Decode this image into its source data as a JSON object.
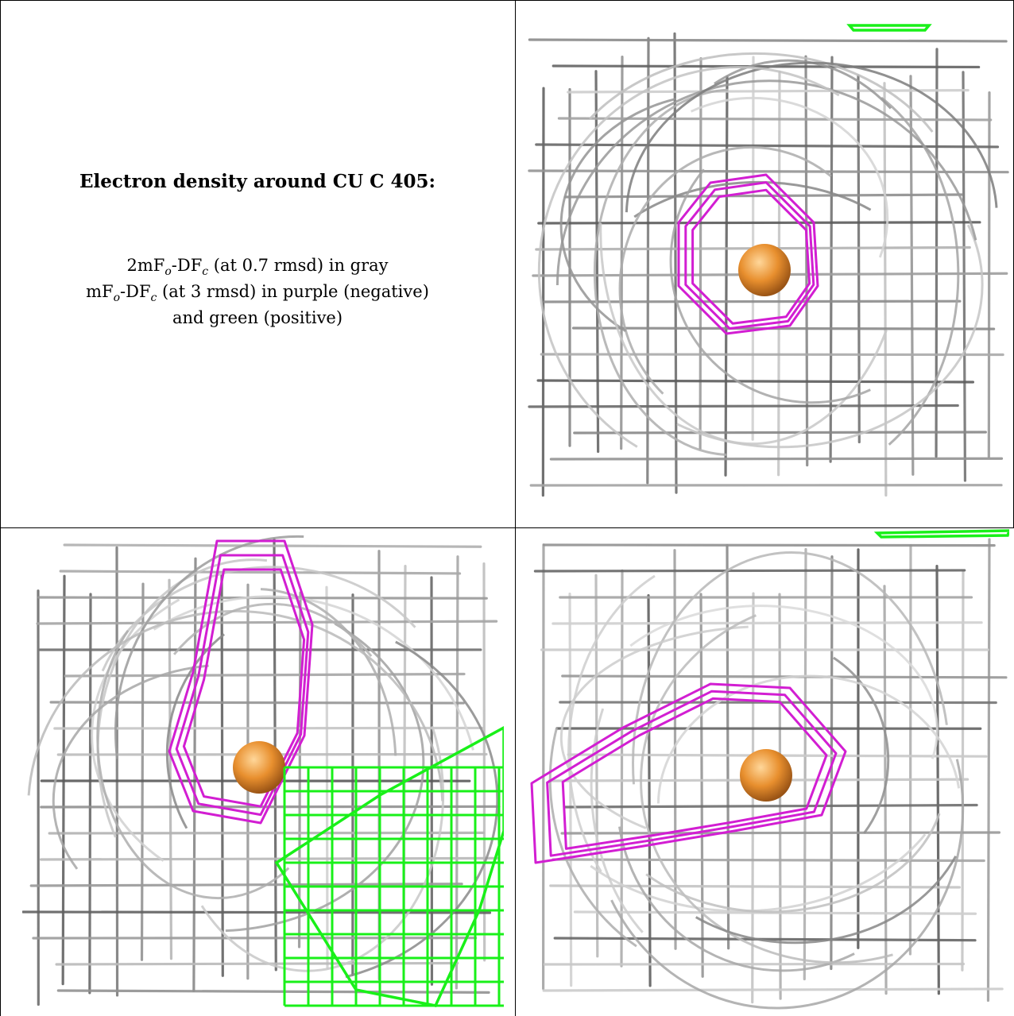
{
  "text_panel": {
    "title": "Electron density around CU C 405:",
    "line1": {
      "a": "2mF",
      "a_sub": "o",
      "b": "-DF",
      "b_sub": "c",
      "c": " (at 0.7 rmsd) in gray"
    },
    "line2": {
      "a": "mF",
      "a_sub": "o",
      "b": "-DF",
      "b_sub": "c",
      "c": " (at 3 rmsd) in purple (negative)"
    },
    "line3": "and green (positive)"
  },
  "colors": {
    "two_fo_fc_map": "#8c8c8c",
    "fo_fc_negative": "#d21ed2",
    "fo_fc_positive": "#19f019",
    "copper_atom": "#e88f2e"
  },
  "panels": [
    {
      "view": "view-1",
      "atom": "copper",
      "has_positive_density": true
    },
    {
      "view": "view-2",
      "atom": "copper",
      "has_positive_density": true
    },
    {
      "view": "view-3",
      "atom": "copper",
      "has_positive_density": true
    }
  ]
}
